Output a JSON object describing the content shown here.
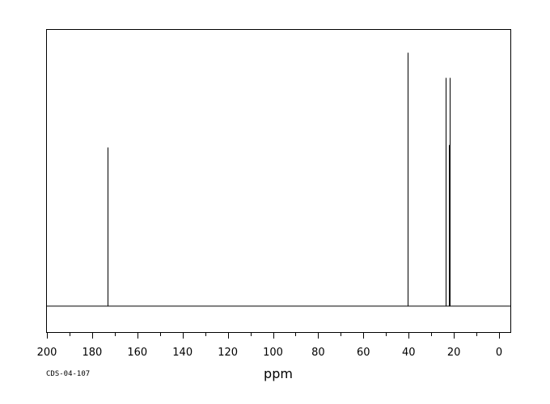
{
  "chart_data": {
    "type": "line",
    "xlabel": "ppm",
    "sample_id": "CDS-04-107",
    "xlim": [
      200,
      -5
    ],
    "x_reversed": true,
    "xticks": [
      200,
      180,
      160,
      140,
      120,
      100,
      80,
      60,
      40,
      20,
      0
    ],
    "baseline": 0,
    "ylim": [
      -0.22,
      2.3
    ],
    "grid": false,
    "legend": "none",
    "peaks": [
      {
        "ppm": 173.0,
        "height": 1.32
      },
      {
        "ppm": 40.5,
        "height": 2.11
      },
      {
        "ppm": 40.6,
        "height": 0.12
      },
      {
        "ppm": 23.6,
        "height": 1.9
      },
      {
        "ppm": 23.8,
        "height": 0.55
      },
      {
        "ppm": 22.0,
        "height": 1.9
      },
      {
        "ppm": 22.1,
        "height": 1.34
      }
    ]
  }
}
